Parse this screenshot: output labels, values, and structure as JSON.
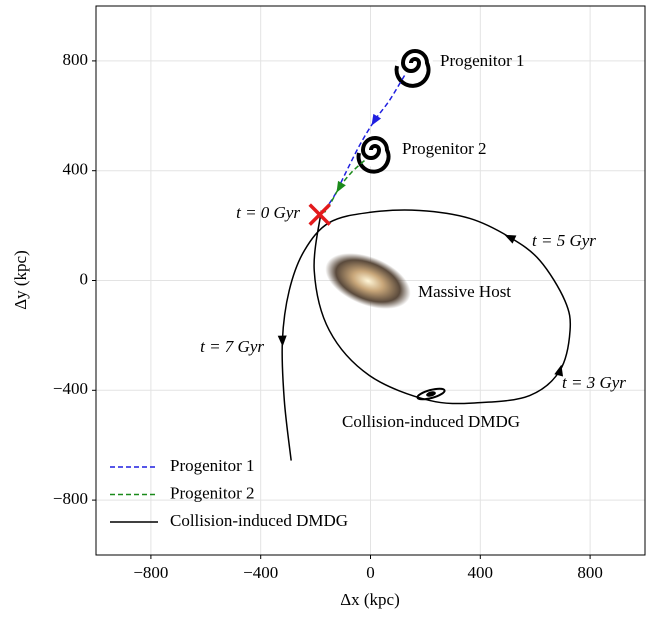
{
  "chart_data": {
    "type": "line",
    "xlabel": "Δx (kpc)",
    "ylabel": "Δy (kpc)",
    "xlim": [
      -1000,
      1000
    ],
    "ylim": [
      -1000,
      1000
    ],
    "xticks": [
      {
        "value": -800,
        "label": "−800"
      },
      {
        "value": -400,
        "label": "−400"
      },
      0,
      400,
      800
    ],
    "yticks": [
      {
        "value": -800,
        "label": "−800"
      },
      {
        "value": -400,
        "label": "−400"
      },
      0,
      400,
      800
    ],
    "grid": true,
    "legend": "lower left",
    "series": [
      {
        "name": "Progenitor 1",
        "color": "#1f1fe0",
        "dash": "dashed",
        "x": [
          124,
          69,
          15,
          -40,
          -95,
          -131,
          -168
        ],
        "values": [
          747,
          656,
          583,
          492,
          383,
          310,
          255
        ]
      },
      {
        "name": "Progenitor 2",
        "color": "#1a8a1a",
        "dash": "dashed",
        "x": [
          -22,
          -69,
          -113,
          -150,
          -168
        ],
        "values": [
          437,
          394,
          339,
          273,
          248
        ]
      },
      {
        "name": "Collision-induced DMDG",
        "color": "#000000",
        "dash": "solid",
        "x": [
          -179,
          -205,
          -150,
          -4,
          215,
          398,
          580,
          690,
          727,
          708,
          617,
          508,
          362,
          179,
          -4,
          -150,
          -241,
          -296,
          -321,
          -314,
          -289
        ],
        "values": [
          255,
          36,
          -182,
          -346,
          -437,
          -445,
          -419,
          -328,
          -182,
          -73,
          73,
          157,
          226,
          255,
          248,
          211,
          109,
          -36,
          -219,
          -437,
          -656
        ]
      }
    ],
    "marker": {
      "x": -185,
      "y": 240,
      "color": "#e31a1c"
    },
    "annotations": [
      "Progenitor 1",
      "Progenitor 2",
      "t = 0 Gyr",
      "t = 5 Gyr",
      "Massive Host",
      "t = 7 Gyr",
      "t = 3 Gyr",
      "Collision-induced DMDG"
    ]
  }
}
